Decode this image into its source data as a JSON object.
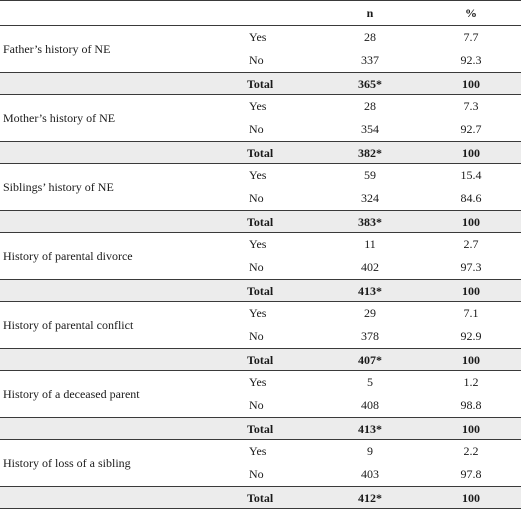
{
  "header": {
    "n": "n",
    "percent": "%"
  },
  "groups": [
    {
      "label": "Father’s history of NE",
      "yes_label": "Yes",
      "yes_n": "28",
      "yes_p": "7.7",
      "no_label": "No",
      "no_n": "337",
      "no_p": "92.3",
      "total_label": "Total",
      "total_n": "365*",
      "total_p": "100"
    },
    {
      "label": "Mother’s history of NE",
      "yes_label": "Yes",
      "yes_n": "28",
      "yes_p": "7.3",
      "no_label": "No",
      "no_n": "354",
      "no_p": "92.7",
      "total_label": "Total",
      "total_n": "382*",
      "total_p": "100"
    },
    {
      "label": "Siblings’ history of NE",
      "yes_label": "Yes",
      "yes_n": "59",
      "yes_p": "15.4",
      "no_label": "No",
      "no_n": "324",
      "no_p": "84.6",
      "total_label": "Total",
      "total_n": "383*",
      "total_p": "100"
    },
    {
      "label": "History of parental divorce",
      "yes_label": "Yes",
      "yes_n": "11",
      "yes_p": "2.7",
      "no_label": "No",
      "no_n": "402",
      "no_p": "97.3",
      "total_label": "Total",
      "total_n": "413*",
      "total_p": "100"
    },
    {
      "label": "History of parental conflict",
      "yes_label": "Yes",
      "yes_n": "29",
      "yes_p": "7.1",
      "no_label": "No",
      "no_n": "378",
      "no_p": "92.9",
      "total_label": "Total",
      "total_n": "407*",
      "total_p": "100"
    },
    {
      "label": "History of a deceased parent",
      "yes_label": "Yes",
      "yes_n": "5",
      "yes_p": "1.2",
      "no_label": "No",
      "no_n": "408",
      "no_p": "98.8",
      "total_label": "Total",
      "total_n": "413*",
      "total_p": "100"
    },
    {
      "label": "History of loss of a sibling",
      "yes_label": "Yes",
      "yes_n": "9",
      "yes_p": "2.2",
      "no_label": "No",
      "no_n": "403",
      "no_p": "97.8",
      "total_label": "Total",
      "total_n": "412*",
      "total_p": "100"
    }
  ]
}
